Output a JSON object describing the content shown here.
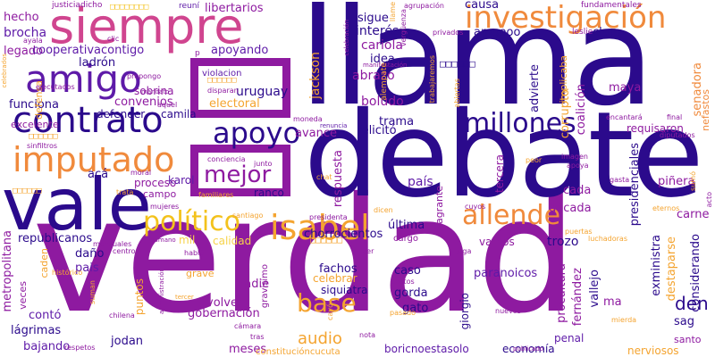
{
  "palette": {
    "purple": "#8e1aa0",
    "violet": "#5e1aa8",
    "indigo": "#2b0a8c",
    "navy": "#1c0f6e",
    "pink": "#d0458f",
    "rose": "#e0708a",
    "orange": "#f08a3c",
    "amber": "#f4a430",
    "gold": "#f3c21c",
    "yellow": "#f6d34a"
  },
  "words": {
    "verdad": "verdad",
    "debate": "debate",
    "llama": "llama",
    "vale": "vale",
    "siempre": "siempre",
    "investigacion": "investigación",
    "amigo": "amigo",
    "contrato": "contrato",
    "imputado": "imputado",
    "apoyo": "apoyo",
    "millones": "millones",
    "allende": "allende",
    "isabel": "isabel",
    "politico": "político",
    "mejor": "mejor",
    "base": "base",
    "audio": "audio",
    "hecho": "hecho",
    "brocha": "brocha",
    "legado": "legado",
    "cooperativacontigo": "cooperativacontigo",
    "ladron": "ladrón",
    "funciona": "funciona",
    "excelente": "excelente",
    "republicanos": "republicanos",
    "metropolitana": "metropolitana",
    "pais": "pais",
    "dano": "daño",
    "lagrimas": "lágrimas",
    "bajando": "bajando",
    "conto": "contó",
    "jodan": "jodan",
    "meses": "meses",
    "justicia": "justicia",
    "dicho": "dicho",
    "libertarios": "libertarios",
    "reuni": "reuní",
    "apoyando": "apoyando",
    "sobrina": "sobrina",
    "uruguay": "uruguay",
    "electoral": "electoral",
    "convenios": "convenios",
    "defender": "defender",
    "camila": "camila",
    "proceso": "proceso",
    "karol": "karol",
    "ranco": "ranco",
    "campo": "campo",
    "aca": "acá",
    "calidad": "calidad",
    "mil": "mil",
    "chorrocientos": "chorrocientos",
    "fachos": "fachos",
    "nadie": "nadie",
    "volver": "volver",
    "gobernacion": "gobernación",
    "grave": "grave",
    "puntos": "puntos",
    "celebrar": "celebrar",
    "siquiatra": "siquiatra",
    "caso": "caso",
    "gorda": "gorda",
    "gato": "gato",
    "paranoicos": "paranoicos",
    "giorgio": "giorgio",
    "boricnoestasolo": "boricnoestasolo",
    "constitucioncucuta": "constitucióncucuta",
    "economia": "economía",
    "penal": "penal",
    "nerviosos": "nerviosos",
    "santo": "santo",
    "sag": "sag",
    "den": "den",
    "considerando": "considerando",
    "exministra": "exministra",
    "destaparse": "destaparse",
    "carne": "carne",
    "pinera": "piñera",
    "procultura": "procultura",
    "fernandez": "fernández",
    "vallejo": "vallejo",
    "ma": "ma",
    "trozo": "trozo",
    "vamos": "vamos",
    "ultima": "última",
    "decada": "década",
    "cada": "cada",
    "pais2": "país",
    "respuesta": "respuesta",
    "trama": "trama",
    "felicito": "felicitó",
    "avance": "avance",
    "boludo": "boludo",
    "abrazo": "abrazo",
    "idea": "idea",
    "cariola": "cariola",
    "interes": "interés",
    "sigue": "sigue",
    "causa": "causa",
    "amoooo": "amoooo",
    "claro": "claro",
    "maya": "maya",
    "corrupto": "corrupto",
    "implicaba": "implicaba",
    "advierte": "advierte",
    "coalicion": "coalición",
    "requisaron": "requisaron",
    "senadora": "senadora",
    "nefastos": "nefastos",
    "presidenciales": "presidenciales",
    "flagrante": "flagrante",
    "tercera": "tercera",
    "jackson": "jackson",
    "fundamentales": "fundamentales",
    "leslie": "leslie",
    "privados": "privados",
    "verguenza": "vergüenza",
    "agrupacion": "agrupación",
    "manifestacion": "manifestación",
    "alempate": "alempate",
    "trabajaremos": "trabajaremos",
    "violacion": "violacion",
    "santiago": "santiago",
    "presidenta": "presidenta",
    "conciencia": "conciencia",
    "junto": "junto",
    "familiares": "familiares",
    "mujeres": "mujeres",
    "humano": "humano",
    "moral": "moral",
    "trata": "trata",
    "hablo": "habló",
    "cayo": "cayó",
    "renuncia": "renuncia",
    "moneda": "moneda",
    "diputados": "diputados",
    "final": "final",
    "encantara": "encantará",
    "imagen": "imagen",
    "apoya": "apoya",
    "peor": "peor",
    "gasta": "gasta",
    "eternos": "eternos",
    "luchadoras": "luchadoras",
    "puertas": "puertas",
    "cuyos": "cuyos",
    "dicen": "dicen",
    "cargo": "cargo",
    "leer": "leer",
    "siga": "siga",
    "costos": "costos",
    "gravisimo": "gravísimo",
    "caden": "caden",
    "veces": "veces",
    "historico": "histórico",
    "chilena": "chilena",
    "camara": "cámara",
    "tras": "tras",
    "nota": "nota",
    "publicado": "publicado",
    "mierda": "mierda",
    "nuevos": "nuevos",
    "pasado": "pasado",
    "respetos": "respetos",
    "mensuales": "mensuales",
    "centro": "centro",
    "administracion": "administración",
    "defensa": "defensa",
    "sinfiltros": "sinfiltros",
    "ejecutados": "ejecutados",
    "celebrados": "celebrados",
    "ayala": "ayala",
    "clic": "clic",
    "propongo": "propongo",
    "mandato": "mandato",
    "aquel": "aquel",
    "disparan": "disparan",
    "celebracion": "celebración",
    "llame": "llame",
    "abiertas": "abiertas",
    "p": "p",
    "tercer": "tercer",
    "suman": "suman",
    "sumo": "sumó",
    "acto": "acto",
    "chat": "chat",
    "boxes": "□□□□□□□□",
    "boxes_short": "□□□□□□"
  }
}
